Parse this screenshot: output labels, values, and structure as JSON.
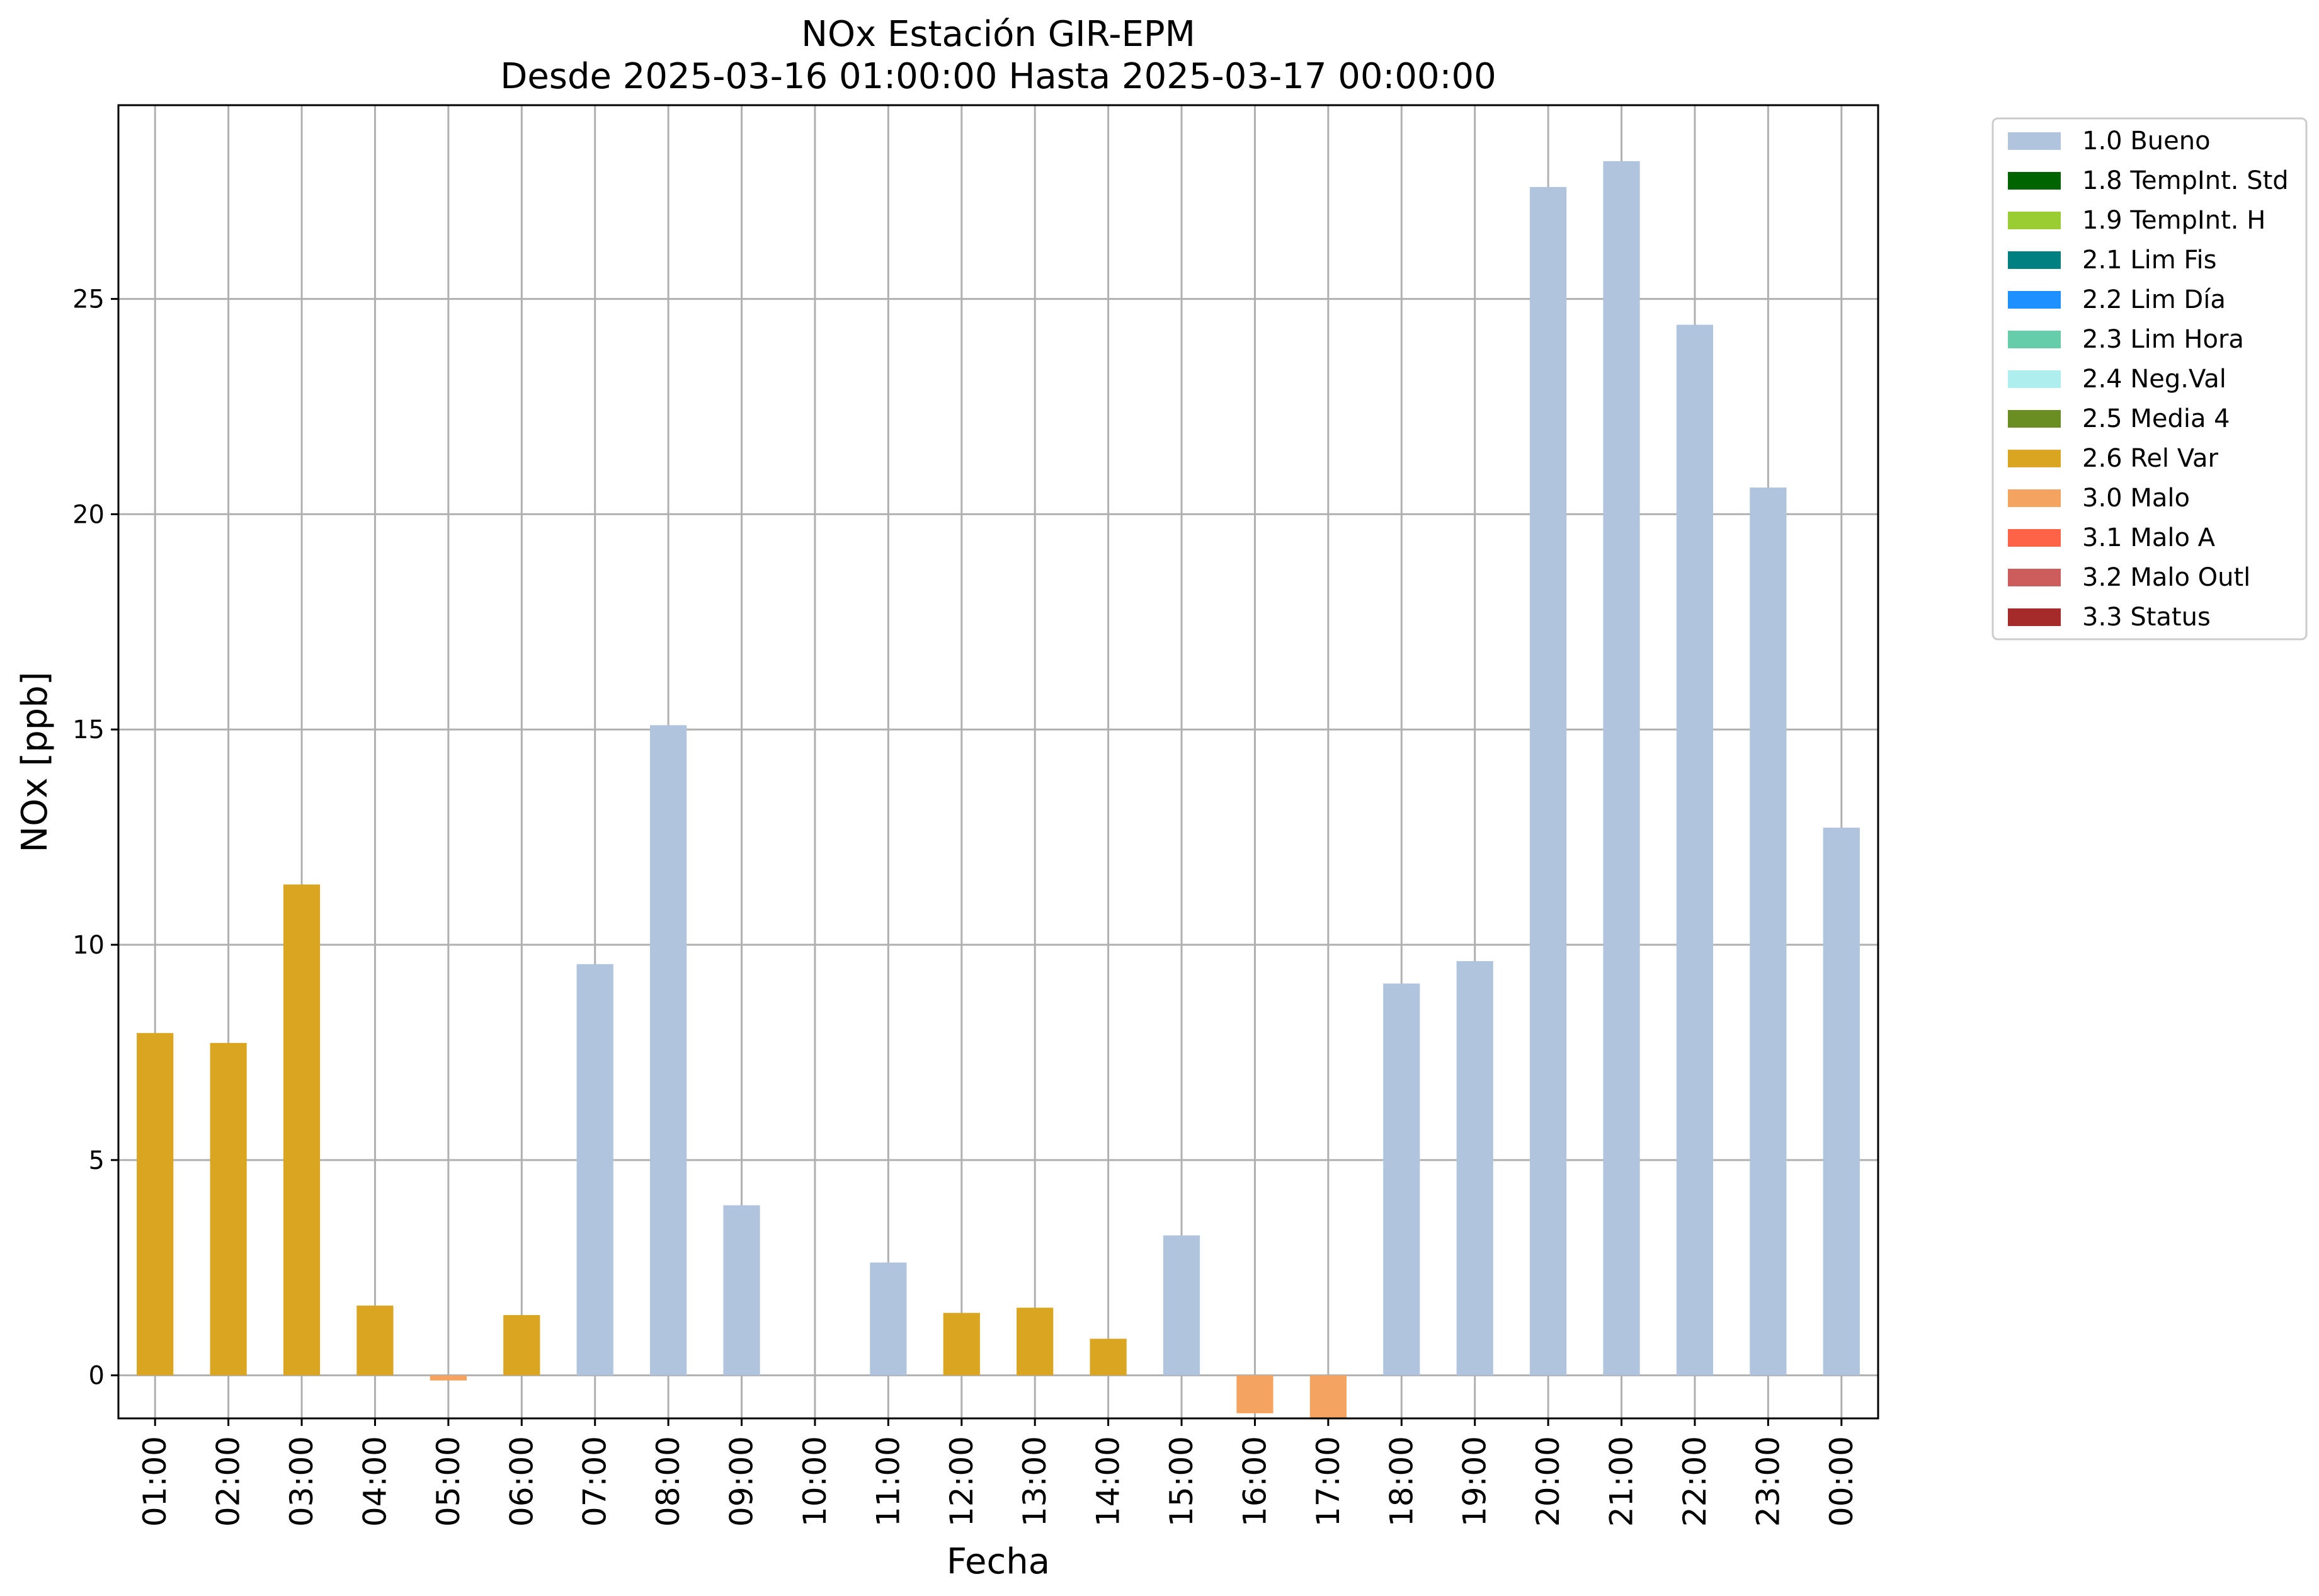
{
  "chart_data": {
    "type": "bar",
    "title": "NOx Estación GIR-EPM",
    "subtitle": "Desde 2025-03-16 01:00:00 Hasta 2025-03-17 00:00:00",
    "xlabel": "Fecha",
    "ylabel": "NOx [ppb]",
    "ylim": [
      -1.0,
      29.5
    ],
    "yticks": [
      0,
      5,
      10,
      15,
      20,
      25
    ],
    "grid": true,
    "legend_position": "outside-upper-right",
    "categories": [
      "01:00",
      "02:00",
      "03:00",
      "04:00",
      "05:00",
      "06:00",
      "07:00",
      "08:00",
      "09:00",
      "10:00",
      "11:00",
      "12:00",
      "13:00",
      "14:00",
      "15:00",
      "16:00",
      "17:00",
      "18:00",
      "19:00",
      "20:00",
      "21:00",
      "22:00",
      "23:00",
      "00:00"
    ],
    "values": [
      7.95,
      7.72,
      11.4,
      1.62,
      -0.12,
      1.4,
      9.55,
      15.1,
      3.95,
      null,
      2.62,
      1.45,
      1.57,
      0.85,
      3.25,
      -0.88,
      -1.0,
      9.1,
      9.62,
      27.6,
      28.2,
      24.4,
      20.62,
      12.72
    ],
    "flags": [
      "2.6 Rel Var",
      "2.6 Rel Var",
      "2.6 Rel Var",
      "2.6 Rel Var",
      "3.0 Malo",
      "2.6 Rel Var",
      "1.0 Bueno",
      "1.0 Bueno",
      "1.0 Bueno",
      null,
      "1.0 Bueno",
      "2.6 Rel Var",
      "2.6 Rel Var",
      "2.6 Rel Var",
      "1.0 Bueno",
      "3.0 Malo",
      "3.0 Malo",
      "1.0 Bueno",
      "1.0 Bueno",
      "1.0 Bueno",
      "1.0 Bueno",
      "1.0 Bueno",
      "1.0 Bueno",
      "1.0 Bueno"
    ],
    "legend": [
      {
        "label": "1.0 Bueno",
        "color": "#b0c4de"
      },
      {
        "label": "1.8 TempInt. Std",
        "color": "#006400"
      },
      {
        "label": "1.9 TempInt. H",
        "color": "#9acd32"
      },
      {
        "label": "2.1 Lim Fis",
        "color": "#008080"
      },
      {
        "label": "2.2 Lim Día",
        "color": "#1e90ff"
      },
      {
        "label": "2.3 Lim Hora",
        "color": "#66cdaa"
      },
      {
        "label": "2.4 Neg.Val",
        "color": "#afeeee"
      },
      {
        "label": "2.5 Media 4",
        "color": "#6b8e23"
      },
      {
        "label": "2.6 Rel Var",
        "color": "#daa520"
      },
      {
        "label": "3.0 Malo",
        "color": "#f4a460"
      },
      {
        "label": "3.1 Malo A",
        "color": "#ff6347"
      },
      {
        "label": "3.2 Malo Outl",
        "color": "#cd5c5c"
      },
      {
        "label": "3.3 Status",
        "color": "#a52a2a"
      }
    ]
  }
}
